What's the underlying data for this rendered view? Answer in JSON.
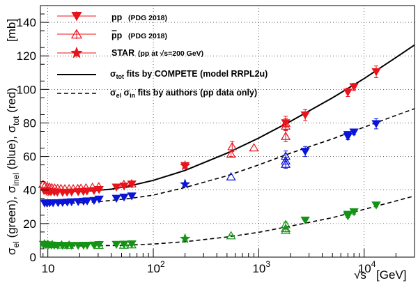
{
  "chart_data": {
    "type": "scatter",
    "x_scale": "log",
    "xlim": [
      8.5,
      30000
    ],
    "ylim": [
      0,
      150
    ],
    "xlabel_symbol": "√s",
    "xlabel_unit": "[GeV]",
    "ylabel": {
      "p1": "σ",
      "s1": "el",
      "p2": " (green), σ",
      "s2": "inel",
      "p3": " (blue), σ",
      "s3": "tot",
      "p4": " (red)"
    },
    "yunit": "[mb]",
    "x_ticks": [
      {
        "value": 10,
        "base": "10",
        "exp": ""
      },
      {
        "value": 100,
        "base": "10",
        "exp": "2"
      },
      {
        "value": 1000,
        "base": "10",
        "exp": "3"
      },
      {
        "value": 10000,
        "base": "10",
        "exp": "4"
      }
    ],
    "y_ticks": [
      0,
      20,
      40,
      60,
      80,
      100,
      120,
      140
    ],
    "grid": true,
    "legend": {
      "position": "top-left",
      "entries": [
        {
          "marker": "triangle-down-filled",
          "color": "#e8141c",
          "label": "pp",
          "label_small": "(PDG 2018)"
        },
        {
          "marker": "triangle-up-open",
          "color": "#e8141c",
          "label": "pp",
          "label_small": "(PDG 2018)",
          "overbar": true
        },
        {
          "marker": "star",
          "color": "#e8141c",
          "label": "STAR",
          "label_small": "(pp at  √s=200 GeV)"
        },
        {
          "marker": "line-solid",
          "color": "#000000",
          "label_parts": {
            "sym": "σ",
            "sub": "tot",
            "rest": " fits by COMPETE (model RRPL2u)"
          }
        },
        {
          "marker": "line-dashed",
          "color": "#000000",
          "label_parts": {
            "sym": "σ",
            "sub": "el",
            "sym2": "  σ",
            "sub2": "in",
            "rest": "  fits by authors (pp data only)"
          }
        }
      ]
    },
    "colors": {
      "tot": "#e8141c",
      "inel": "#0a14d8",
      "el": "#149414",
      "fit": "#000000"
    },
    "fits": {
      "tot": {
        "style": "solid",
        "x": [
          9,
          12,
          20,
          40,
          60,
          100,
          200,
          500,
          1000,
          2000,
          5000,
          10000,
          20000,
          30000
        ],
        "y": [
          40.5,
          39.5,
          39.0,
          40.5,
          42.5,
          45.8,
          51.7,
          62.0,
          71.0,
          81.0,
          95.0,
          106.5,
          119.0,
          126.5
        ]
      },
      "inel": {
        "style": "dashed",
        "x": [
          9,
          15,
          30,
          60,
          100,
          200,
          500,
          1000,
          2000,
          5000,
          10000,
          20000,
          30000
        ],
        "y": [
          32.0,
          32.0,
          33.0,
          35.0,
          37.0,
          41.5,
          48.5,
          55.0,
          62.0,
          70.5,
          77.5,
          84.5,
          88.5
        ]
      },
      "el": {
        "style": "dashed",
        "x": [
          9,
          20,
          50,
          100,
          200,
          500,
          1000,
          2000,
          5000,
          10000,
          20000,
          30000
        ],
        "y": [
          7.0,
          6.7,
          7.0,
          7.8,
          9.2,
          12.0,
          14.8,
          18.5,
          23.5,
          28.5,
          33.5,
          36.5
        ]
      }
    },
    "series": [
      {
        "name": "pp",
        "quantity": "tot",
        "marker": "triangle-down-filled",
        "color": "#e8141c",
        "x": [
          9.2,
          9.7,
          10.2,
          10.7,
          11.5,
          12.3,
          13.8,
          15.2,
          16.8,
          19.4,
          21.7,
          23.5,
          27.4,
          30.6,
          44.7,
          52.8,
          62.5,
          200,
          1800,
          2760,
          7000,
          8000,
          13000
        ],
        "y": [
          39.5,
          39.2,
          38.9,
          38.8,
          38.7,
          38.6,
          38.5,
          38.6,
          38.7,
          38.9,
          39.1,
          39.3,
          39.6,
          40.2,
          41.7,
          42.3,
          43.5,
          54.5,
          80.0,
          84.7,
          98.3,
          101.5,
          110.5
        ],
        "yerr": [
          0,
          0,
          0,
          0,
          0,
          0,
          0,
          0,
          0,
          0,
          0,
          0,
          0,
          0,
          0,
          0,
          0,
          0,
          2.5,
          3.3,
          2.5,
          2.1,
          3.5
        ]
      },
      {
        "name": "pp",
        "quantity": "tot",
        "marker": "triangle-up-open",
        "color": "#e8141c",
        "x": [
          9.0,
          9.4,
          9.9,
          10.4,
          10.9,
          11.6,
          12.4,
          13.3,
          14.5,
          15.9,
          17.4,
          19.2,
          20.6,
          23.0,
          26.5,
          30.4,
          52.6,
          62.3,
          546,
          560,
          900,
          1800,
          1800,
          1800
        ],
        "y": [
          43.5,
          42.8,
          42.2,
          41.8,
          41.5,
          41.3,
          41.1,
          41.0,
          40.9,
          40.9,
          40.9,
          41.0,
          41.2,
          41.4,
          41.8,
          42.1,
          43.5,
          43.8,
          61.5,
          66.0,
          65.3,
          72.1,
          78.3,
          80.0
        ],
        "yerr": [
          0,
          0,
          0,
          0,
          0,
          0,
          0,
          0,
          0,
          0,
          0,
          0,
          0,
          0,
          0,
          0,
          0,
          0,
          1.5,
          3.0,
          0,
          3.3,
          2.4,
          4.0
        ]
      },
      {
        "name": "STAR",
        "quantity": "tot",
        "marker": "star",
        "color": "#e8141c",
        "x": [
          200
        ],
        "y": [
          54.5
        ],
        "yerr": [
          0
        ]
      },
      {
        "name": "pp inelastic",
        "quantity": "inel",
        "marker": "triangle-down-filled",
        "color": "#0a14d8",
        "x": [
          9.3,
          9.8,
          10.4,
          11.2,
          12.5,
          13.8,
          15.3,
          16.8,
          19.4,
          21.8,
          23.6,
          27.4,
          30.6,
          44.7,
          52.8,
          62.5,
          2760,
          7000,
          7000,
          8000,
          13000
        ],
        "y": [
          32.2,
          32.2,
          32.3,
          32.3,
          32.4,
          32.5,
          32.7,
          32.9,
          33.0,
          33.2,
          33.4,
          33.7,
          34.5,
          35.0,
          35.7,
          36.4,
          63.0,
          71.8,
          73.0,
          74.5,
          79.5
        ],
        "yerr": [
          0,
          0,
          0,
          0,
          0,
          0,
          0,
          0,
          0,
          0,
          0,
          0,
          0,
          0,
          0,
          0,
          3.0,
          1.8,
          0,
          1.6,
          3.0
        ]
      },
      {
        "name": "pp inelastic",
        "quantity": "inel",
        "marker": "triangle-up-open",
        "color": "#0a14d8",
        "x": [
          546,
          1800,
          1800,
          1800
        ],
        "y": [
          48.0,
          55.5,
          57.5,
          60.3
        ],
        "yerr": [
          0,
          2.5,
          2.0,
          3.0
        ]
      },
      {
        "name": "STAR",
        "quantity": "inel",
        "marker": "star",
        "color": "#0a14d8",
        "x": [
          200
        ],
        "y": [
          43.5
        ],
        "yerr": [
          0
        ]
      },
      {
        "name": "pp elastic",
        "quantity": "el",
        "marker": "triangle-down-filled",
        "color": "#149414",
        "x": [
          9.1,
          9.6,
          10.2,
          10.8,
          11.5,
          12.4,
          13.8,
          15.2,
          16.8,
          19.4,
          21.8,
          23.6,
          27.4,
          30.6,
          44.7,
          52.8,
          62.5,
          2760,
          7000,
          7000,
          8000,
          13000
        ],
        "y": [
          7.5,
          7.3,
          7.2,
          7.1,
          7.0,
          7.0,
          6.9,
          6.9,
          6.9,
          6.9,
          7.0,
          7.0,
          7.1,
          7.4,
          7.5,
          7.6,
          7.8,
          22.0,
          24.5,
          25.4,
          27.0,
          31.0
        ],
        "yerr": [
          0,
          0,
          0,
          0,
          0,
          0,
          0,
          0,
          0,
          0,
          0,
          0,
          0,
          0,
          0,
          0,
          0,
          0,
          1.0,
          0,
          1.4,
          1.0
        ]
      },
      {
        "name": "pp elastic",
        "quantity": "el",
        "marker": "triangle-up-open",
        "color": "#149414",
        "x": [
          9.3,
          10.0,
          11.0,
          13.5,
          15.9,
          30.5,
          52.5,
          62.3,
          546,
          1800,
          1800,
          1800
        ],
        "y": [
          8.0,
          7.8,
          7.6,
          7.4,
          7.3,
          7.2,
          7.3,
          7.5,
          12.9,
          16.0,
          17.2,
          19.5
        ],
        "yerr": [
          0,
          0,
          0,
          0,
          0,
          0,
          0,
          0,
          0.3,
          1.0,
          0.6,
          1.4
        ]
      },
      {
        "name": "STAR",
        "quantity": "el",
        "marker": "star",
        "color": "#149414",
        "x": [
          200
        ],
        "y": [
          11.0
        ],
        "yerr": [
          0
        ]
      }
    ]
  }
}
